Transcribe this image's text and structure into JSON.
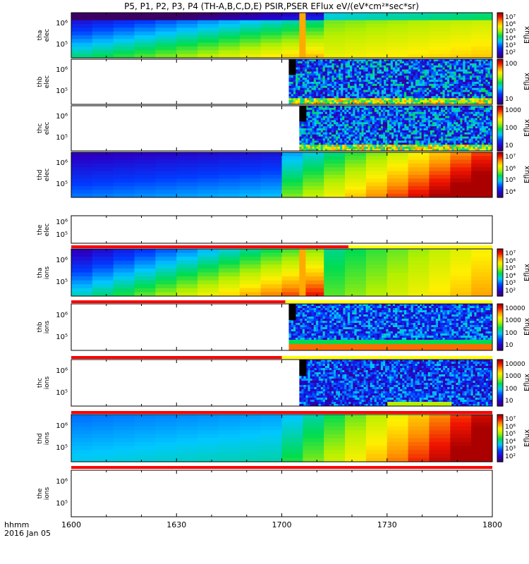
{
  "title": "P5, P1, P2, P3, P4 (TH-A,B,C,D,E) PSIR,PSER EFlux eV/(eV*cm²*sec*sr)",
  "x_info": {
    "label": "hhmm",
    "date": "2016 Jan 05"
  },
  "chart_data": {
    "type": "heatmap",
    "x_ticks": [
      "1600",
      "1630",
      "1700",
      "1730",
      "1800"
    ],
    "xlim": [
      "1600",
      "1800"
    ],
    "colorbar_label": "Eflux",
    "panels": [
      {
        "name": "tha elec",
        "ylabel": "tha\nelec",
        "yticks": [
          "10⁶",
          "10⁵"
        ],
        "colorbar": [
          "10⁷",
          "10⁶",
          "10⁵",
          "10⁴",
          "10³",
          "10²"
        ],
        "log10_range": [
          2,
          7.3
        ],
        "data_start": "1600",
        "status_bar": null
      },
      {
        "name": "thb elec",
        "ylabel": "thb\nelec",
        "yticks": [
          "10⁶",
          "10⁵"
        ],
        "colorbar": [
          "100",
          "10"
        ],
        "log10_range": [
          0,
          2.3
        ],
        "data_start": "1702",
        "status_bar": null
      },
      {
        "name": "thc elec",
        "ylabel": "thc\nelec",
        "yticks": [
          "10⁶",
          "10⁵"
        ],
        "colorbar": [
          "1000",
          "100",
          "10"
        ],
        "log10_range": [
          0.2,
          3.5
        ],
        "data_start": "1705",
        "status_bar": null
      },
      {
        "name": "thd elec",
        "ylabel": "thd\nelec",
        "yticks": [
          "10⁶",
          "10⁵"
        ],
        "colorbar": [
          "10⁷",
          "10⁶",
          "10⁵",
          "10⁴"
        ],
        "log10_range": [
          3.4,
          7.4
        ],
        "data_start": "1600",
        "status_bar": null
      },
      {
        "name": "the elec",
        "ylabel": "the\nelec",
        "yticks": [
          "10⁶",
          "10⁵"
        ],
        "colorbar": [],
        "log10_range": null,
        "data_start": null,
        "status_bar": {
          "red_until": "1719"
        }
      },
      {
        "name": "tha ions",
        "ylabel": "tha\nions",
        "yticks": [
          "10⁶",
          "10⁵"
        ],
        "colorbar": [
          "10⁷",
          "10⁶",
          "10⁵",
          "10⁴",
          "10³",
          "10²"
        ],
        "log10_range": [
          2,
          7.3
        ],
        "data_start": "1600",
        "status_bar": {
          "red_until": "1701"
        }
      },
      {
        "name": "thb ions",
        "ylabel": "thb\nions",
        "yticks": [
          "10⁶",
          "10⁵"
        ],
        "colorbar": [
          "10000",
          "1000",
          "100",
          "10"
        ],
        "log10_range": [
          0.2,
          4.4
        ],
        "data_start": "1702",
        "status_bar": {
          "red_until": "1700"
        }
      },
      {
        "name": "thc ions",
        "ylabel": "thc\nions",
        "yticks": [
          "10⁶",
          "10⁵"
        ],
        "colorbar": [
          "10000",
          "1000",
          "100",
          "10"
        ],
        "log10_range": [
          0.2,
          4.4
        ],
        "data_start": "1705",
        "status_bar": {
          "red_until": "1800"
        }
      },
      {
        "name": "thd ions",
        "ylabel": "thd\nions",
        "yticks": [
          "10⁶",
          "10⁵"
        ],
        "colorbar": [
          "10⁷",
          "10⁶",
          "10⁵",
          "10⁴",
          "10³",
          "10²"
        ],
        "log10_range": [
          2,
          7.3
        ],
        "data_start": "1600",
        "status_bar": {
          "red_until": "1800"
        }
      },
      {
        "name": "the ions",
        "ylabel": "the\nions",
        "yticks": [
          "10⁶",
          "10⁵"
        ],
        "colorbar": [],
        "log10_range": null,
        "data_start": null,
        "status_bar": null
      }
    ]
  }
}
